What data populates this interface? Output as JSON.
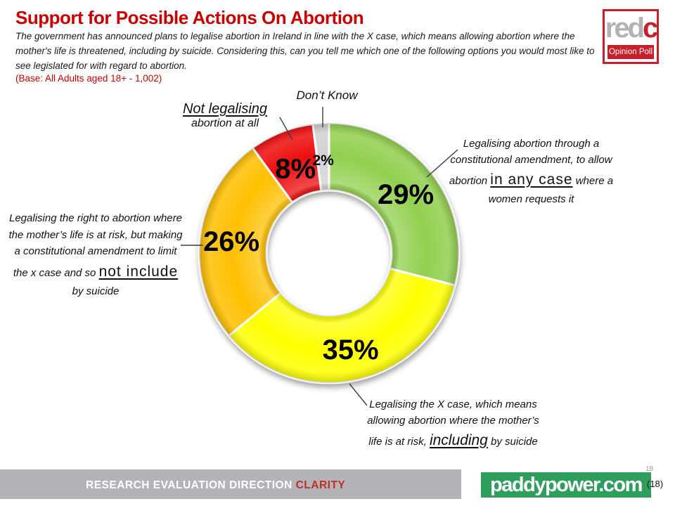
{
  "header": {
    "title": "Support for Possible Actions On Abortion",
    "subtitle": "The government has announced plans to legalise abortion in Ireland in line with the X case, which means allowing abortion where the\nmother's life is threatened, including by suicide. Considering this, can you tell me which one of the following options you would most like to\nsee legislated for with regard to abortion.",
    "base_note": "(Base: All Adults aged 18+ - 1,002)"
  },
  "logo": {
    "grey_part": "red",
    "red_part": "c",
    "tagline": "Opinion Poll",
    "brand_red": "#C8202B"
  },
  "chart_data": {
    "type": "pie",
    "subtype": "donut",
    "title": "Support for Possible Actions On Abortion",
    "value_suffix": "%",
    "slices": [
      {
        "label": "Legalising abortion through a constitutional amendment, to allow abortion in any case where a women requests it",
        "value": 29,
        "color": "#92D050",
        "value_label": "29%"
      },
      {
        "label": "Legalising the X case, which means allowing abortion where the mother's life is at risk, including by suicide",
        "value": 35,
        "color": "#FFFF00",
        "value_label": "35%"
      },
      {
        "label": "Legalising the right to abortion where the mother's life is at risk, but making a constitutional amendment to limit the x case and so not include by suicide",
        "value": 26,
        "color": "#FFC000",
        "value_label": "26%"
      },
      {
        "label": "Not legalising abortion at all",
        "value": 8,
        "color": "#EE1111",
        "value_label": "8%"
      },
      {
        "label": "Don't Know",
        "value": 2,
        "color": "#D2D2D2",
        "value_label": "2%"
      }
    ]
  },
  "annotations": {
    "dont_know": {
      "text": "Don’t Know"
    },
    "not_legalising": {
      "line1": "Not legalising",
      "line2": "abortion at all"
    },
    "green": {
      "pre": "Legalising abortion through a constitutional amendment, to allow abortion ",
      "emph": "in any case",
      "post": " where a women requests it"
    },
    "orange": {
      "pre": "Legalising the right to abortion where the mother’s life is at risk, but making a constitutional amendment to limit the x case and so ",
      "emph": "not include",
      "post": " by suicide"
    },
    "yellow": {
      "pre": "Legalising the X case, which means allowing abortion where the mother’s life is at risk, ",
      "emph": "including",
      "post": " by suicide"
    }
  },
  "footer": {
    "tagline_white": "RESEARCH EVALUATION DIRECTION ",
    "tagline_red": "CLARITY",
    "brand": "paddypower.com",
    "page_small": "18",
    "page": "(18)"
  }
}
